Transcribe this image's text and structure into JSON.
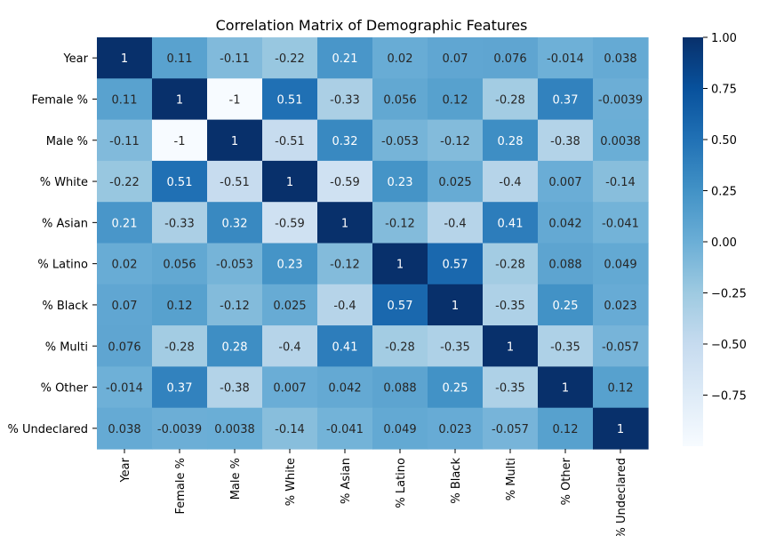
{
  "chart_data": {
    "type": "heatmap",
    "title": "Correlation Matrix of Demographic Features",
    "labels": [
      "Year",
      "Female %",
      "Male %",
      "% White",
      "% Asian",
      "% Latino",
      "% Black",
      "% Multi",
      "% Other",
      "% Undeclared"
    ],
    "matrix": [
      [
        "1",
        "0.11",
        "-0.11",
        "-0.22",
        "0.21",
        "0.02",
        "0.07",
        "0.076",
        "-0.014",
        "0.038"
      ],
      [
        "0.11",
        "1",
        "-1",
        "0.51",
        "-0.33",
        "0.056",
        "0.12",
        "-0.28",
        "0.37",
        "-0.0039"
      ],
      [
        "-0.11",
        "-1",
        "1",
        "-0.51",
        "0.32",
        "-0.053",
        "-0.12",
        "0.28",
        "-0.38",
        "0.0038"
      ],
      [
        "-0.22",
        "0.51",
        "-0.51",
        "1",
        "-0.59",
        "0.23",
        "0.025",
        "-0.4",
        "0.007",
        "-0.14"
      ],
      [
        "0.21",
        "-0.33",
        "0.32",
        "-0.59",
        "1",
        "-0.12",
        "-0.4",
        "0.41",
        "0.042",
        "-0.041"
      ],
      [
        "0.02",
        "0.056",
        "-0.053",
        "0.23",
        "-0.12",
        "1",
        "0.57",
        "-0.28",
        "0.088",
        "0.049"
      ],
      [
        "0.07",
        "0.12",
        "-0.12",
        "0.025",
        "-0.4",
        "0.57",
        "1",
        "-0.35",
        "0.25",
        "0.023"
      ],
      [
        "0.076",
        "-0.28",
        "0.28",
        "-0.4",
        "0.41",
        "-0.28",
        "-0.35",
        "1",
        "-0.35",
        "-0.057"
      ],
      [
        "-0.014",
        "0.37",
        "-0.38",
        "0.007",
        "0.042",
        "0.088",
        "0.25",
        "-0.35",
        "1",
        "0.12"
      ],
      [
        "0.038",
        "-0.0039",
        "0.0038",
        "-0.14",
        "-0.041",
        "0.049",
        "0.023",
        "-0.057",
        "0.12",
        "1"
      ]
    ],
    "colormap": "Blues",
    "vmin": -1,
    "vmax": 1,
    "colorbar_ticks": [
      "1.00",
      "0.75",
      "0.50",
      "0.25",
      "0.00",
      "−0.25",
      "−0.50",
      "−0.75"
    ],
    "colorbar_tick_values": [
      1,
      0.75,
      0.5,
      0.25,
      0,
      -0.25,
      -0.5,
      -0.75
    ]
  }
}
